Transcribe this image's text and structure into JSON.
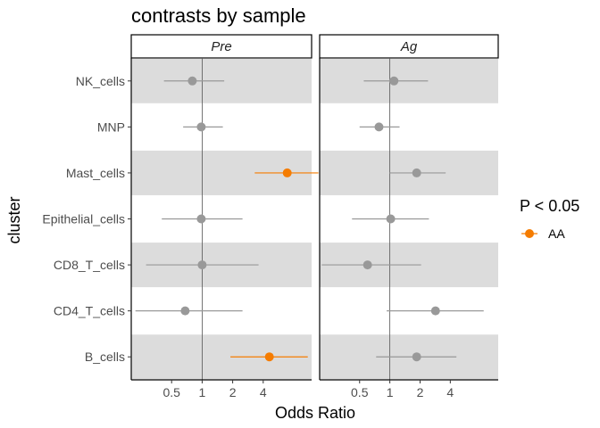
{
  "chart_data": {
    "type": "scatter",
    "title": "contrasts by sample",
    "xlabel": "Odds Ratio",
    "ylabel": "cluster",
    "x_scale": "log2",
    "x_ticks": [
      0.5,
      1,
      2,
      4
    ],
    "x_tick_labels": [
      "0.5",
      "1",
      "2",
      "4"
    ],
    "xlim": [
      0.2,
      12
    ],
    "reference_line": 1,
    "categories": [
      "NK_cells",
      "MNP",
      "Mast_cells",
      "Epithelial_cells",
      "CD8_T_cells",
      "CD4_T_cells",
      "B_cells"
    ],
    "shaded_rows": [
      "NK_cells",
      "Mast_cells",
      "CD8_T_cells",
      "B_cells"
    ],
    "facets": [
      {
        "label": "Pre",
        "points": [
          {
            "cluster": "NK_cells",
            "or": 0.8,
            "lo": 0.42,
            "hi": 1.65,
            "sig": false
          },
          {
            "cluster": "MNP",
            "or": 0.98,
            "lo": 0.65,
            "hi": 1.6,
            "sig": false
          },
          {
            "cluster": "Mast_cells",
            "or": 6.9,
            "lo": 3.3,
            "hi": 14.0,
            "sig": true
          },
          {
            "cluster": "Epithelial_cells",
            "or": 0.98,
            "lo": 0.4,
            "hi": 2.5,
            "sig": false
          },
          {
            "cluster": "CD8_T_cells",
            "or": 1.0,
            "lo": 0.28,
            "hi": 3.6,
            "sig": false
          },
          {
            "cluster": "CD4_T_cells",
            "or": 0.68,
            "lo": 0.22,
            "hi": 2.5,
            "sig": false
          },
          {
            "cluster": "B_cells",
            "or": 4.6,
            "lo": 1.9,
            "hi": 11.0,
            "sig": true
          }
        ]
      },
      {
        "label": "Ag",
        "points": [
          {
            "cluster": "NK_cells",
            "or": 1.1,
            "lo": 0.55,
            "hi": 2.4,
            "sig": false
          },
          {
            "cluster": "MNP",
            "or": 0.78,
            "lo": 0.5,
            "hi": 1.25,
            "sig": false
          },
          {
            "cluster": "Mast_cells",
            "or": 1.85,
            "lo": 1.0,
            "hi": 3.6,
            "sig": false
          },
          {
            "cluster": "Epithelial_cells",
            "or": 1.02,
            "lo": 0.42,
            "hi": 2.45,
            "sig": false
          },
          {
            "cluster": "CD8_T_cells",
            "or": 0.6,
            "lo": 0.21,
            "hi": 2.05,
            "sig": false
          },
          {
            "cluster": "CD4_T_cells",
            "or": 2.85,
            "lo": 0.93,
            "hi": 8.6,
            "sig": false
          },
          {
            "cluster": "B_cells",
            "or": 1.85,
            "lo": 0.73,
            "hi": 4.6,
            "sig": false
          }
        ]
      }
    ],
    "legend": {
      "title": "P < 0.05",
      "items": [
        {
          "label": "AA",
          "color": "#f57c00"
        }
      ],
      "position": "right"
    },
    "colors": {
      "significant": "#f57c00",
      "not_significant": "#999999",
      "row_shade": "#dcdcdc",
      "ref_line": "#555555"
    }
  }
}
